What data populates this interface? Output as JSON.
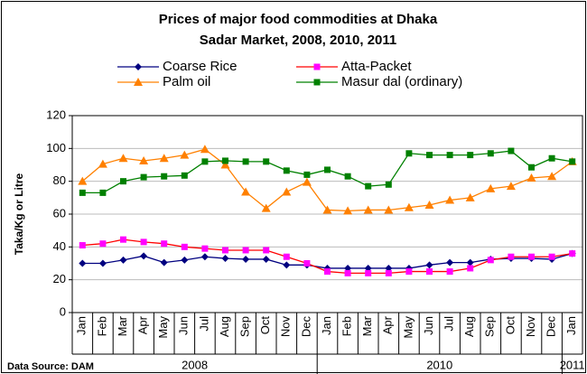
{
  "chart_data": {
    "type": "line",
    "title": [
      "Prices of major food commodities at Dhaka",
      "Sadar Market, 2008, 2010, 2011"
    ],
    "y_label": "Taka/Kg or Litre",
    "source": "Data Source: DAM",
    "categories": [
      "Jan",
      "Feb",
      "Mar",
      "Apr",
      "May",
      "Jun",
      "Jul",
      "Aug",
      "Sep",
      "Oct",
      "Nov",
      "Dec",
      "Jan",
      "Feb",
      "Mar",
      "Apr",
      "May",
      "Jun",
      "Jul",
      "Aug",
      "Sep",
      "Oct",
      "Nov",
      "Dec",
      "Jan"
    ],
    "x_group": [
      "2008",
      "2008",
      "2008",
      "2008",
      "2008",
      "2008",
      "2008",
      "2008",
      "2008",
      "2008",
      "2008",
      "2008",
      "2010",
      "2010",
      "2010",
      "2010",
      "2010",
      "2010",
      "2010",
      "2010",
      "2010",
      "2010",
      "2010",
      "2010",
      "2011"
    ],
    "series": [
      {
        "name": "Coarse Rice",
        "color": "#000080",
        "marker": "diamond",
        "values": [
          30,
          30,
          32,
          34.5,
          30.5,
          32,
          34,
          33,
          32.5,
          32.5,
          29,
          29,
          27,
          27,
          27,
          27,
          27,
          29,
          30.5,
          30.5,
          32.5,
          33,
          33,
          32.5,
          36
        ]
      },
      {
        "name": "Atta-Packet",
        "color": "#ff00ff",
        "line_color": "#ff0000",
        "marker": "square",
        "values": [
          41,
          42,
          44.5,
          43,
          42,
          40,
          39,
          38,
          38,
          38,
          34,
          30,
          25,
          24,
          24,
          24,
          25,
          25,
          25,
          27,
          32,
          34,
          34,
          34,
          36
        ]
      },
      {
        "name": "Palm oil",
        "color": "#ff8000",
        "marker": "triangle",
        "values": [
          80,
          90.5,
          94,
          92.5,
          94,
          96,
          99.5,
          90,
          73.5,
          63.5,
          73.5,
          79.5,
          62.5,
          62,
          62.5,
          62.5,
          64,
          65.5,
          68.5,
          70,
          75.5,
          77,
          82,
          83,
          92
        ]
      },
      {
        "name": "Masur dal (ordinary)",
        "color": "#008000",
        "marker": "square",
        "values": [
          73,
          73,
          80,
          82.5,
          83,
          83.5,
          92,
          92.5,
          92,
          92,
          86.5,
          84,
          87,
          83,
          77,
          78,
          97,
          96,
          96,
          96,
          97,
          98.5,
          88.5,
          94,
          92
        ]
      }
    ],
    "ylim": [
      0,
      120
    ],
    "yticks": [
      0,
      20,
      40,
      60,
      80,
      100,
      120
    ],
    "grid": true
  }
}
